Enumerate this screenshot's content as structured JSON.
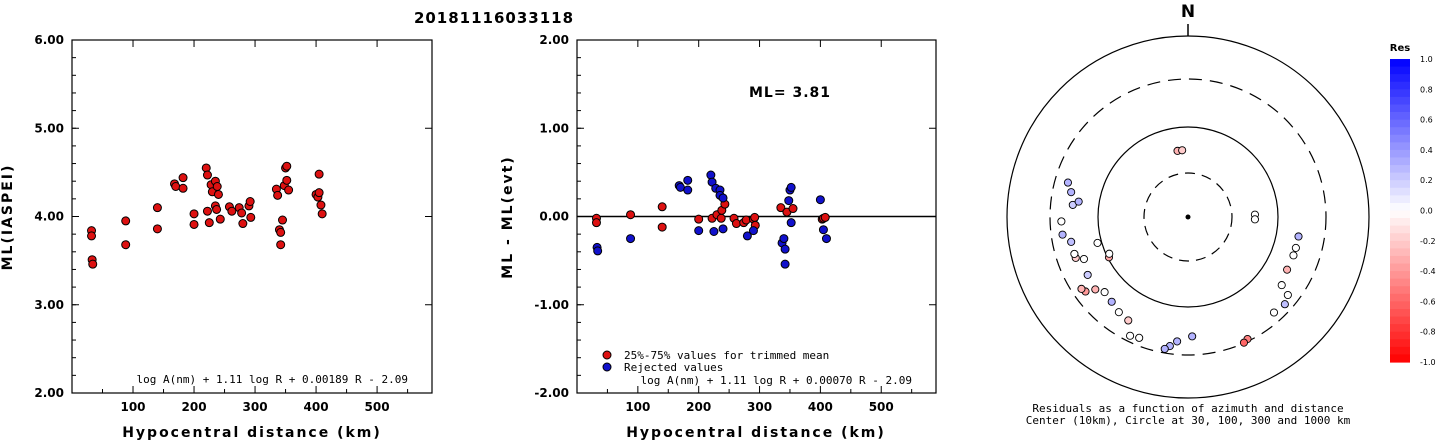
{
  "title": "20181116033118",
  "chart_data": [
    {
      "type": "scatter",
      "xlabel": "Hypocentral distance (km)",
      "ylabel": "ML(IASPEI)",
      "xlim": [
        0,
        590
      ],
      "ylim": [
        2.0,
        6.0
      ],
      "xticks": [
        "100",
        "200",
        "300",
        "400",
        "500"
      ],
      "yticks": [
        "2.00",
        "3.00",
        "4.00",
        "5.00",
        "6.00"
      ],
      "formula": "log A(nm) + 1.11 log R + 0.00189 R - 2.09",
      "points": [
        [
          32,
          3.84
        ],
        [
          32,
          3.78
        ],
        [
          33,
          3.51
        ],
        [
          34,
          3.46
        ],
        [
          88,
          3.95
        ],
        [
          88,
          3.68
        ],
        [
          140,
          4.1
        ],
        [
          140,
          3.86
        ],
        [
          168,
          4.37
        ],
        [
          170,
          4.34
        ],
        [
          182,
          4.44
        ],
        [
          182,
          4.32
        ],
        [
          200,
          4.03
        ],
        [
          200,
          3.91
        ],
        [
          220,
          4.55
        ],
        [
          222,
          4.47
        ],
        [
          222,
          4.06
        ],
        [
          225,
          3.93
        ],
        [
          228,
          4.36
        ],
        [
          230,
          4.28
        ],
        [
          235,
          4.4
        ],
        [
          235,
          4.12
        ],
        [
          237,
          4.08
        ],
        [
          238,
          4.34
        ],
        [
          240,
          4.25
        ],
        [
          243,
          3.97
        ],
        [
          258,
          4.11
        ],
        [
          262,
          4.06
        ],
        [
          274,
          4.1
        ],
        [
          278,
          4.04
        ],
        [
          280,
          3.92
        ],
        [
          290,
          4.12
        ],
        [
          292,
          4.17
        ],
        [
          293,
          3.99
        ],
        [
          335,
          4.31
        ],
        [
          337,
          4.24
        ],
        [
          340,
          3.85
        ],
        [
          342,
          3.82
        ],
        [
          342,
          3.68
        ],
        [
          345,
          3.96
        ],
        [
          348,
          4.35
        ],
        [
          350,
          4.55
        ],
        [
          352,
          4.57
        ],
        [
          352,
          4.41
        ],
        [
          355,
          4.3
        ],
        [
          400,
          4.25
        ],
        [
          403,
          4.22
        ],
        [
          405,
          4.48
        ],
        [
          405,
          4.27
        ],
        [
          408,
          4.13
        ],
        [
          410,
          4.03
        ]
      ]
    },
    {
      "type": "scatter",
      "xlabel": "Hypocentral distance (km)",
      "ylabel": "ML - ML(evt)",
      "xlim": [
        0,
        590
      ],
      "ylim": [
        -2.0,
        2.0
      ],
      "xticks": [
        "100",
        "200",
        "300",
        "400",
        "500"
      ],
      "yticks": [
        "-2.00",
        "-1.00",
        "0.00",
        "1.00",
        "2.00"
      ],
      "annotation": "ML= 3.81",
      "reference_line": 0.0,
      "legend": [
        "25%-75% values for trimmed mean",
        "Rejected values"
      ],
      "formula": "log A(nm) + 1.11 log R + 0.00070 R - 2.09",
      "series": [
        {
          "name": "25%-75% values for trimmed mean",
          "color": "#dd1111",
          "points": [
            [
              32,
              -0.02
            ],
            [
              32,
              -0.07
            ],
            [
              88,
              0.02
            ],
            [
              140,
              0.11
            ],
            [
              140,
              -0.12
            ],
            [
              200,
              -0.03
            ],
            [
              222,
              -0.02
            ],
            [
              230,
              0.02
            ],
            [
              237,
              -0.02
            ],
            [
              238,
              0.07
            ],
            [
              243,
              0.14
            ],
            [
              258,
              -0.02
            ],
            [
              262,
              -0.08
            ],
            [
              274,
              -0.07
            ],
            [
              278,
              -0.04
            ],
            [
              290,
              -0.03
            ],
            [
              292,
              -0.01
            ],
            [
              293,
              -0.1
            ],
            [
              335,
              0.1
            ],
            [
              345,
              0.05
            ],
            [
              355,
              0.09
            ],
            [
              403,
              -0.03
            ],
            [
              405,
              -0.02
            ],
            [
              408,
              -0.01
            ]
          ]
        },
        {
          "name": "Rejected values",
          "color": "#1111cc",
          "points": [
            [
              33,
              -0.35
            ],
            [
              34,
              -0.39
            ],
            [
              88,
              -0.25
            ],
            [
              168,
              0.35
            ],
            [
              170,
              0.33
            ],
            [
              182,
              0.41
            ],
            [
              182,
              0.3
            ],
            [
              200,
              -0.16
            ],
            [
              220,
              0.47
            ],
            [
              222,
              0.39
            ],
            [
              225,
              -0.17
            ],
            [
              228,
              0.32
            ],
            [
              235,
              0.3
            ],
            [
              235,
              0.24
            ],
            [
              240,
              0.21
            ],
            [
              240,
              -0.14
            ],
            [
              280,
              -0.22
            ],
            [
              290,
              -0.16
            ],
            [
              337,
              -0.3
            ],
            [
              340,
              -0.25
            ],
            [
              342,
              -0.54
            ],
            [
              342,
              -0.37
            ],
            [
              348,
              0.18
            ],
            [
              350,
              0.3
            ],
            [
              352,
              0.33
            ],
            [
              352,
              -0.07
            ],
            [
              400,
              0.19
            ],
            [
              405,
              -0.15
            ],
            [
              410,
              -0.25
            ]
          ]
        }
      ]
    },
    {
      "type": "scatter",
      "subtype": "polar",
      "north_label": "N",
      "caption_line1": "Residuals as a function of azimuth and distance",
      "caption_line2": "Center (10km), Circle at 30, 100, 300 and 1000 km",
      "colorbar_title": "Res",
      "colorbar_ticks": [
        "1.0",
        "0.8",
        "0.6",
        "0.4",
        "0.2",
        "0.0",
        "-0.2",
        "-0.4",
        "-0.6",
        "-0.8",
        "-1.0"
      ],
      "colorbar_range": [
        -1.0,
        1.0
      ],
      "stations": [
        {
          "az": -9,
          "r": 0.37,
          "res": -0.3
        },
        {
          "az": -5,
          "r": 0.37,
          "res": -0.2
        },
        {
          "az": 88,
          "r": 0.37,
          "res": 0.0
        },
        {
          "az": 92,
          "r": 0.37,
          "res": 0.0
        },
        {
          "az": 100,
          "r": 0.62,
          "res": 0.3
        },
        {
          "az": 106,
          "r": 0.62,
          "res": 0.0
        },
        {
          "az": 110,
          "r": 0.62,
          "res": 0.0
        },
        {
          "az": 118,
          "r": 0.62,
          "res": -0.3
        },
        {
          "az": 126,
          "r": 0.64,
          "res": 0.0
        },
        {
          "az": 128,
          "r": 0.7,
          "res": 0.0
        },
        {
          "az": 132,
          "r": 0.72,
          "res": 0.25
        },
        {
          "az": 138,
          "r": 0.71,
          "res": 0.0
        },
        {
          "az": 154,
          "r": 0.75,
          "res": -0.5
        },
        {
          "az": 156,
          "r": 0.76,
          "res": -0.6
        },
        {
          "az": 178,
          "r": 0.66,
          "res": 0.3
        },
        {
          "az": 185,
          "r": 0.69,
          "res": 0.3
        },
        {
          "az": 188,
          "r": 0.72,
          "res": 0.3
        },
        {
          "az": 190,
          "r": 0.74,
          "res": 0.3
        },
        {
          "az": 202,
          "r": 0.72,
          "res": 0.0
        },
        {
          "az": 206,
          "r": 0.73,
          "res": 0.0
        },
        {
          "az": 210,
          "r": 0.66,
          "res": -0.2
        },
        {
          "az": 216,
          "r": 0.65,
          "res": 0.0
        },
        {
          "az": 222,
          "r": 0.63,
          "res": 0.3
        },
        {
          "az": 228,
          "r": 0.62,
          "res": 0.0
        },
        {
          "az": 232,
          "r": 0.65,
          "res": -0.3
        },
        {
          "az": 234,
          "r": 0.7,
          "res": -0.4
        },
        {
          "az": 236,
          "r": 0.71,
          "res": -0.3
        },
        {
          "az": 240,
          "r": 0.64,
          "res": 0.2
        },
        {
          "az": 243,
          "r": 0.49,
          "res": -0.35
        },
        {
          "az": 245,
          "r": 0.48,
          "res": 0.0
        },
        {
          "az": 248,
          "r": 0.62,
          "res": 0.0
        },
        {
          "az": 250,
          "r": 0.66,
          "res": -0.2
        },
        {
          "az": 252,
          "r": 0.66,
          "res": 0.0
        },
        {
          "az": 254,
          "r": 0.52,
          "res": 0.0
        },
        {
          "az": 258,
          "r": 0.66,
          "res": 0.25
        },
        {
          "az": 262,
          "r": 0.7,
          "res": 0.3
        },
        {
          "az": 268,
          "r": 0.7,
          "res": 0.0
        },
        {
          "az": 276,
          "r": 0.64,
          "res": 0.2
        },
        {
          "az": 278,
          "r": 0.61,
          "res": 0.3
        },
        {
          "az": 282,
          "r": 0.66,
          "res": 0.3
        },
        {
          "az": 286,
          "r": 0.69,
          "res": 0.3
        }
      ]
    }
  ]
}
